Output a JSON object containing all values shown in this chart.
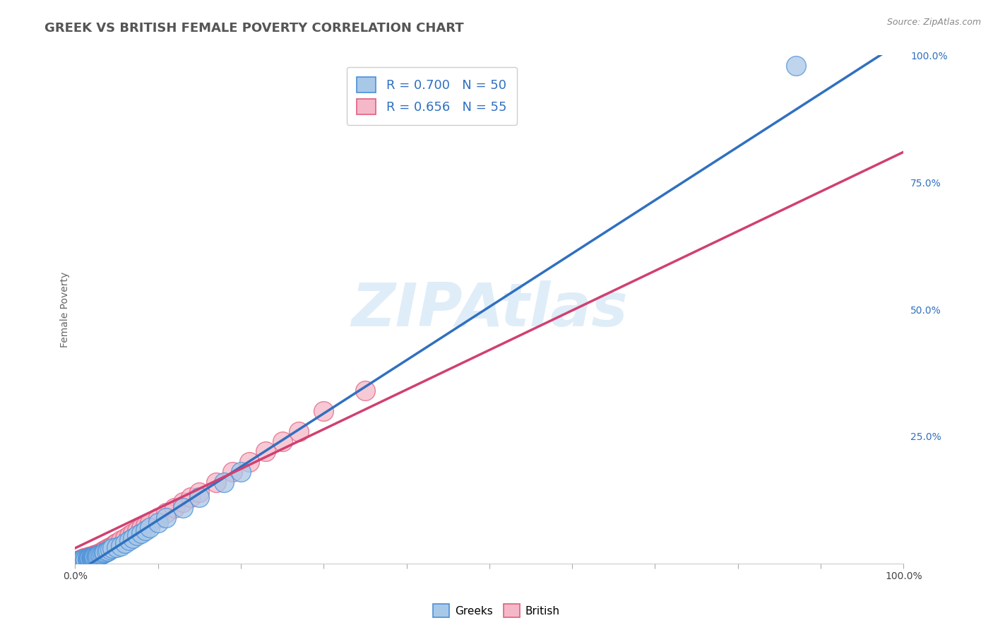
{
  "title": "GREEK VS BRITISH FEMALE POVERTY CORRELATION CHART",
  "source_text": "Source: ZipAtlas.com",
  "ylabel": "Female Poverty",
  "xlim": [
    0,
    1
  ],
  "ylim": [
    0,
    1
  ],
  "ytick_labels_right": [
    "25.0%",
    "50.0%",
    "75.0%",
    "100.0%"
  ],
  "ytick_vals_right": [
    0.25,
    0.5,
    0.75,
    1.0
  ],
  "greek_fill_color": "#a8c8e8",
  "greek_edge_color": "#4a90d9",
  "british_fill_color": "#f5b8c8",
  "british_edge_color": "#e06080",
  "greek_line_color": "#3070c0",
  "british_line_color": "#d04070",
  "greek_R": 0.7,
  "greek_N": 50,
  "british_R": 0.656,
  "british_N": 55,
  "watermark": "ZIPAtlas",
  "background_color": "#ffffff",
  "greek_scatter_x": [
    0.005,
    0.007,
    0.008,
    0.01,
    0.01,
    0.012,
    0.013,
    0.015,
    0.015,
    0.016,
    0.017,
    0.018,
    0.018,
    0.019,
    0.02,
    0.02,
    0.021,
    0.022,
    0.022,
    0.023,
    0.024,
    0.025,
    0.026,
    0.027,
    0.028,
    0.03,
    0.031,
    0.033,
    0.035,
    0.036,
    0.038,
    0.04,
    0.042,
    0.045,
    0.05,
    0.055,
    0.06,
    0.065,
    0.07,
    0.075,
    0.08,
    0.085,
    0.09,
    0.1,
    0.11,
    0.13,
    0.15,
    0.18,
    0.2,
    0.87
  ],
  "greek_scatter_y": [
    0.005,
    0.006,
    0.007,
    0.006,
    0.008,
    0.007,
    0.008,
    0.008,
    0.01,
    0.009,
    0.01,
    0.009,
    0.011,
    0.01,
    0.01,
    0.012,
    0.011,
    0.012,
    0.013,
    0.012,
    0.014,
    0.013,
    0.015,
    0.014,
    0.016,
    0.018,
    0.017,
    0.019,
    0.02,
    0.022,
    0.023,
    0.025,
    0.027,
    0.03,
    0.032,
    0.035,
    0.04,
    0.045,
    0.05,
    0.055,
    0.06,
    0.065,
    0.07,
    0.08,
    0.09,
    0.11,
    0.13,
    0.16,
    0.18,
    0.98
  ],
  "british_scatter_x": [
    0.005,
    0.006,
    0.008,
    0.009,
    0.01,
    0.011,
    0.012,
    0.013,
    0.014,
    0.015,
    0.016,
    0.017,
    0.018,
    0.019,
    0.02,
    0.021,
    0.022,
    0.023,
    0.024,
    0.025,
    0.026,
    0.027,
    0.028,
    0.03,
    0.032,
    0.034,
    0.036,
    0.038,
    0.04,
    0.042,
    0.045,
    0.048,
    0.05,
    0.055,
    0.06,
    0.065,
    0.07,
    0.075,
    0.08,
    0.085,
    0.09,
    0.1,
    0.11,
    0.12,
    0.13,
    0.14,
    0.15,
    0.17,
    0.19,
    0.21,
    0.23,
    0.25,
    0.27,
    0.3,
    0.35
  ],
  "british_scatter_y": [
    0.006,
    0.007,
    0.008,
    0.009,
    0.007,
    0.01,
    0.009,
    0.011,
    0.01,
    0.012,
    0.011,
    0.013,
    0.012,
    0.014,
    0.013,
    0.015,
    0.014,
    0.016,
    0.015,
    0.017,
    0.016,
    0.018,
    0.017,
    0.02,
    0.022,
    0.024,
    0.026,
    0.028,
    0.03,
    0.032,
    0.035,
    0.038,
    0.04,
    0.045,
    0.05,
    0.055,
    0.06,
    0.065,
    0.07,
    0.075,
    0.08,
    0.09,
    0.1,
    0.11,
    0.12,
    0.13,
    0.14,
    0.16,
    0.18,
    0.2,
    0.22,
    0.24,
    0.26,
    0.3,
    0.34
  ],
  "title_fontsize": 13,
  "axis_label_fontsize": 10,
  "tick_fontsize": 10,
  "legend_fontsize": 13
}
